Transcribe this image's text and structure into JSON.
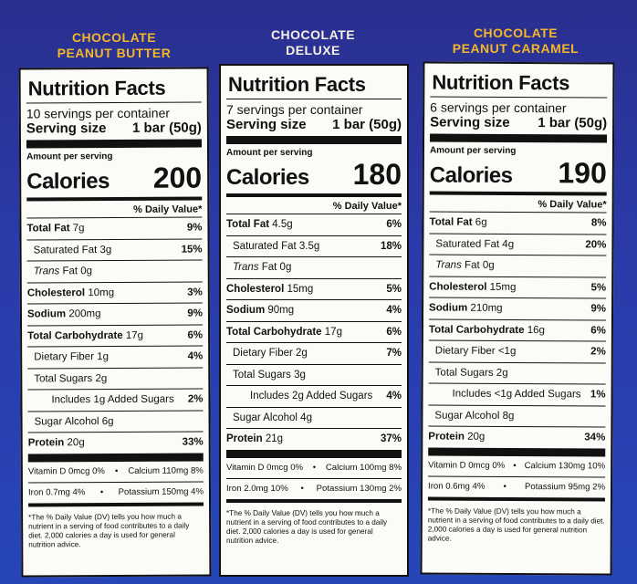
{
  "panels": [
    {
      "flavor": "CHOCOLATE\nPEANUT BUTTER",
      "title": "Nutrition Facts",
      "servings": "10 servings per container",
      "serving_size_label": "Serving size",
      "serving_size_value": "1 bar (50g)",
      "amount_per_serving": "Amount per serving",
      "calories_label": "Calories",
      "calories": "200",
      "dv_header": "% Daily Value*",
      "rows": [
        {
          "label": "Total Fat",
          "value": "7g",
          "pct": "9%"
        },
        {
          "label": "Saturated Fat",
          "value": "3g",
          "pct": "15%"
        },
        {
          "label": "Trans",
          "value": "Fat 0g",
          "pct": ""
        },
        {
          "label": "Cholesterol",
          "value": "10mg",
          "pct": "3%"
        },
        {
          "label": "Sodium",
          "value": "200mg",
          "pct": "9%"
        },
        {
          "label": "Total Carbohydrate",
          "value": "17g",
          "pct": "6%"
        },
        {
          "label": "Dietary Fiber",
          "value": "1g",
          "pct": "4%"
        },
        {
          "label": "Total Sugars",
          "value": "2g",
          "pct": ""
        },
        {
          "label": "Includes",
          "value": "1g Added Sugars",
          "pct": "2%"
        },
        {
          "label": "Sugar Alcohol",
          "value": "6g",
          "pct": ""
        },
        {
          "label": "Protein",
          "value": "20g",
          "pct": "33%"
        }
      ],
      "vit1_left": "Vitamin D 0mcg 0%",
      "vit1_right": "Calcium 110mg 8%",
      "vit2_left": "Iron 0.7mg 4%",
      "vit2_right": "Potassium 150mg 4%",
      "footnote": "*The % Daily Value (DV) tells you how much a nutrient in a serving of food contributes to a daily diet. 2,000 calories a day is used for general nutrition advice."
    },
    {
      "flavor": "CHOCOLATE\nDELUXE",
      "title": "Nutrition Facts",
      "servings": "7 servings per container",
      "serving_size_label": "Serving size",
      "serving_size_value": "1 bar (50g)",
      "amount_per_serving": "Amount per serving",
      "calories_label": "Calories",
      "calories": "180",
      "dv_header": "% Daily Value*",
      "rows": [
        {
          "label": "Total Fat",
          "value": "4.5g",
          "pct": "6%"
        },
        {
          "label": "Saturated Fat",
          "value": "3.5g",
          "pct": "18%"
        },
        {
          "label": "Trans",
          "value": "Fat 0g",
          "pct": ""
        },
        {
          "label": "Cholesterol",
          "value": "15mg",
          "pct": "5%"
        },
        {
          "label": "Sodium",
          "value": "90mg",
          "pct": "4%"
        },
        {
          "label": "Total Carbohydrate",
          "value": "17g",
          "pct": "6%"
        },
        {
          "label": "Dietary Fiber",
          "value": "2g",
          "pct": "7%"
        },
        {
          "label": "Total Sugars",
          "value": "3g",
          "pct": ""
        },
        {
          "label": "Includes",
          "value": "2g Added Sugars",
          "pct": "4%"
        },
        {
          "label": "Sugar Alcohol",
          "value": "4g",
          "pct": ""
        },
        {
          "label": "Protein",
          "value": "21g",
          "pct": "37%"
        }
      ],
      "vit1_left": "Vitamin D 0mcg 0%",
      "vit1_right": "Calcium 100mg 8%",
      "vit2_left": "Iron 2.0mg 10%",
      "vit2_right": "Potassium 130mg 2%",
      "footnote": "*The % Daily Value (DV) tells you how much a nutrient in a serving of food contributes to a daily diet. 2,000 calories a day is used for general nutrition advice."
    },
    {
      "flavor": "CHOCOLATE\nPEANUT CARAMEL",
      "title": "Nutrition Facts",
      "servings": "6 servings per container",
      "serving_size_label": "Serving size",
      "serving_size_value": "1 bar (50g)",
      "amount_per_serving": "Amount per serving",
      "calories_label": "Calories",
      "calories": "190",
      "dv_header": "% Daily Value*",
      "rows": [
        {
          "label": "Total Fat",
          "value": "6g",
          "pct": "8%"
        },
        {
          "label": "Saturated Fat",
          "value": "4g",
          "pct": "20%"
        },
        {
          "label": "Trans",
          "value": "Fat 0g",
          "pct": ""
        },
        {
          "label": "Cholesterol",
          "value": "15mg",
          "pct": "5%"
        },
        {
          "label": "Sodium",
          "value": "210mg",
          "pct": "9%"
        },
        {
          "label": "Total Carbohydrate",
          "value": "16g",
          "pct": "6%"
        },
        {
          "label": "Dietary Fiber",
          "value": "<1g",
          "pct": "2%"
        },
        {
          "label": "Total Sugars",
          "value": "2g",
          "pct": ""
        },
        {
          "label": "Includes",
          "value": "<1g Added Sugars",
          "pct": "1%"
        },
        {
          "label": "Sugar Alcohol",
          "value": "8g",
          "pct": ""
        },
        {
          "label": "Protein",
          "value": "20g",
          "pct": "34%"
        }
      ],
      "vit1_left": "Vitamin D 0mcg 0%",
      "vit1_right": "Calcium 130mg 10%",
      "vit2_left": "Iron 0.6mg 4%",
      "vit2_right": "Potassium 95mg 2%",
      "footnote": "*The % Daily Value (DV) tells you how much a nutrient in a serving of food contributes to a daily diet. 2,000 calories a day is used for general nutrition advice."
    }
  ]
}
